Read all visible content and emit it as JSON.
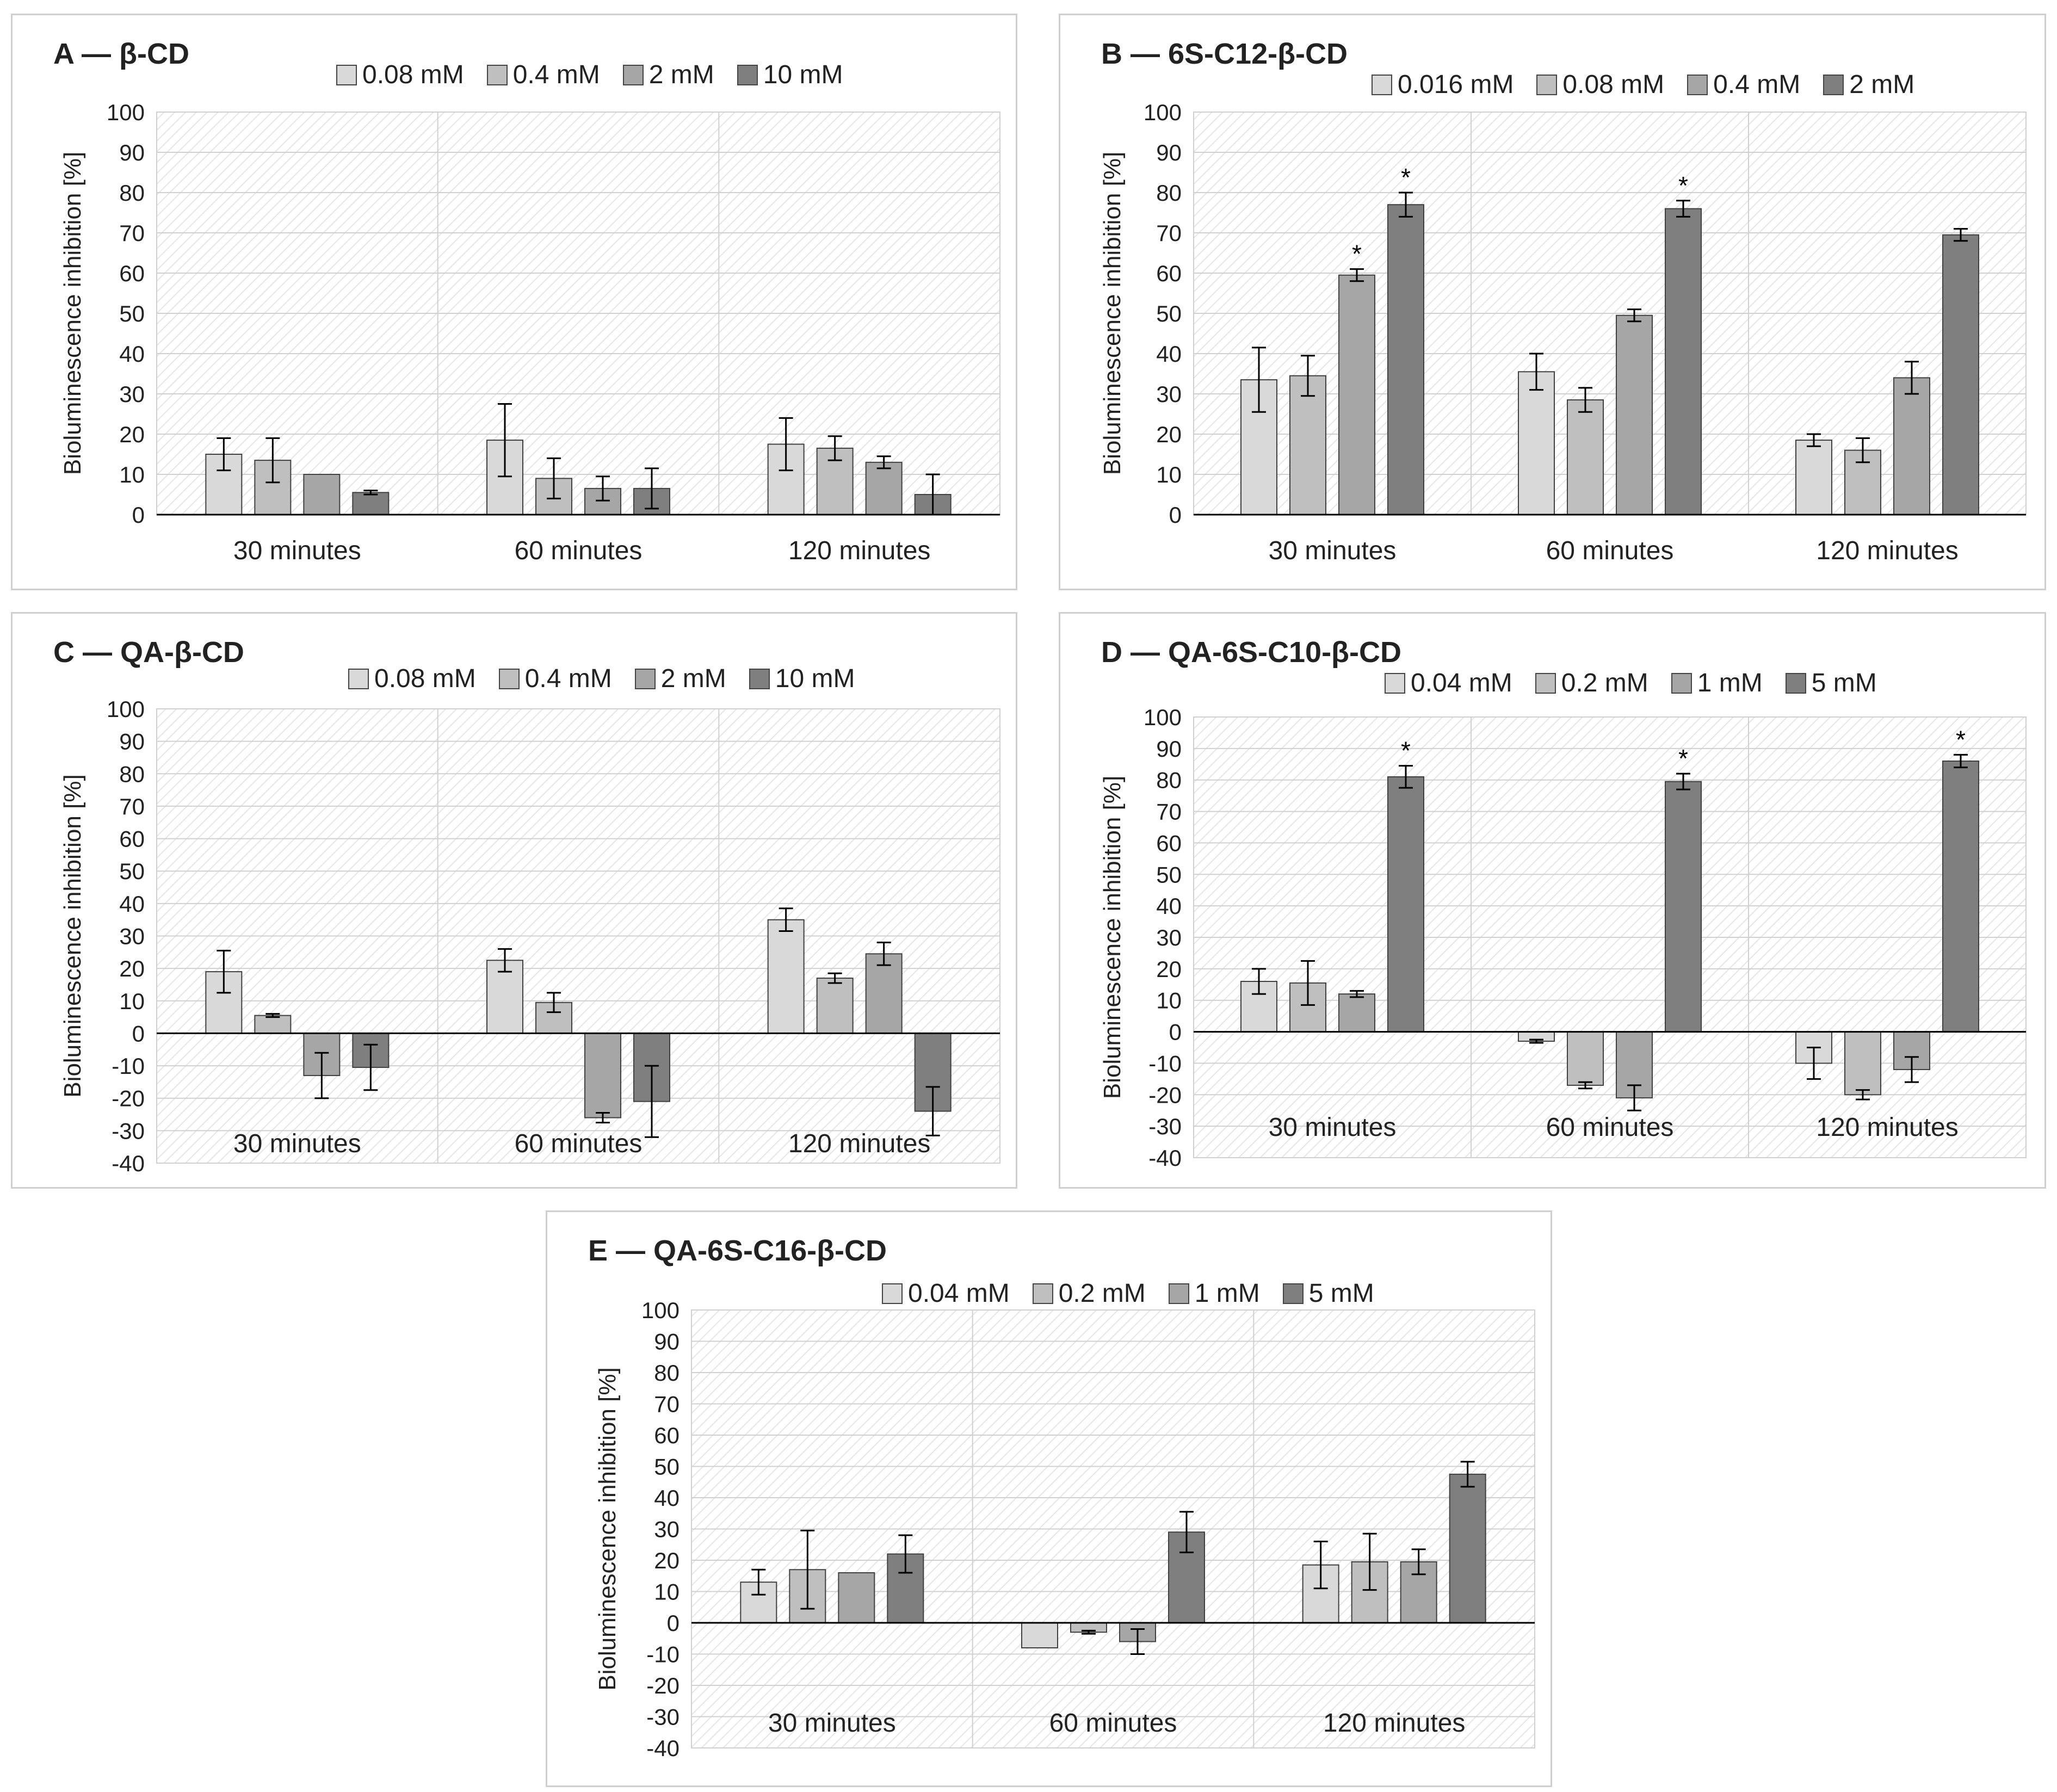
{
  "colors": {
    "series": [
      "#d9d9d9",
      "#bfbfbf",
      "#a6a6a6",
      "#7f7f7f"
    ],
    "bar_stroke": "#404040",
    "grid": "#d0d0d0",
    "hatch": "#e6e6e6",
    "axis": "#000000"
  },
  "chart_data": [
    {
      "panel_id": "a",
      "type": "bar",
      "title": "A — β-CD",
      "ylabel": "Bioluminescence inhibition [%]",
      "ylim": [
        0,
        100
      ],
      "yticks": [
        "100",
        "90",
        "80",
        "70",
        "60",
        "50",
        "40",
        "30",
        "20",
        "10",
        "0"
      ],
      "categories": [
        "30 minutes",
        "60 minutes",
        "120 minutes"
      ],
      "series": [
        {
          "name": "0.08 mM",
          "values": [
            15,
            18.5,
            17.5
          ],
          "errors": [
            4,
            9,
            6.5
          ]
        },
        {
          "name": "0.4 mM",
          "values": [
            13.5,
            9,
            16.5
          ],
          "errors": [
            5.5,
            5,
            3
          ]
        },
        {
          "name": "2 mM",
          "values": [
            10,
            6.5,
            13
          ],
          "errors": [
            0,
            3,
            1.5
          ]
        },
        {
          "name": "10 mM",
          "values": [
            5.5,
            6.5,
            5
          ],
          "errors": [
            0.5,
            5,
            5
          ]
        }
      ],
      "significance": [],
      "legend": "top"
    },
    {
      "panel_id": "b",
      "type": "bar",
      "title": "B — 6S-C12-β-CD",
      "ylabel": "Bioluminescence inhibition [%]",
      "ylim": [
        0,
        100
      ],
      "yticks": [
        "100",
        "90",
        "80",
        "70",
        "60",
        "50",
        "40",
        "30",
        "20",
        "10",
        "0"
      ],
      "categories": [
        "30 minutes",
        "60 minutes",
        "120 minutes"
      ],
      "series": [
        {
          "name": "0.016 mM",
          "values": [
            33.5,
            35.5,
            18.5
          ],
          "errors": [
            8,
            4.5,
            1.5
          ]
        },
        {
          "name": "0.08 mM",
          "values": [
            34.5,
            28.5,
            16
          ],
          "errors": [
            5,
            3,
            3
          ]
        },
        {
          "name": "0.4 mM",
          "values": [
            59.5,
            49.5,
            34
          ],
          "errors": [
            1.5,
            1.5,
            4
          ]
        },
        {
          "name": "2 mM",
          "values": [
            77,
            76,
            69.5
          ],
          "errors": [
            3,
            2,
            1.5
          ]
        }
      ],
      "significance": [
        {
          "category": 0,
          "series": 2,
          "label": "*"
        },
        {
          "category": 0,
          "series": 3,
          "label": "*"
        },
        {
          "category": 1,
          "series": 3,
          "label": "*"
        }
      ],
      "legend": "top"
    },
    {
      "panel_id": "c",
      "type": "bar",
      "title": "C — QA-β-CD",
      "ylabel": "Bioluminescence inhibition [%]",
      "ylim": [
        -40,
        100
      ],
      "yticks": [
        "100",
        "90",
        "80",
        "70",
        "60",
        "50",
        "40",
        "30",
        "20",
        "10",
        "0",
        "-10",
        "-20",
        "-30",
        "-40"
      ],
      "categories": [
        "30 minutes",
        "60 minutes",
        "120 minutes"
      ],
      "series": [
        {
          "name": "0.08 mM",
          "values": [
            19,
            22.5,
            35
          ],
          "errors": [
            6.5,
            3.5,
            3.5
          ]
        },
        {
          "name": "0.4 mM",
          "values": [
            5.5,
            9.5,
            17
          ],
          "errors": [
            0.5,
            3,
            1.5
          ]
        },
        {
          "name": "2 mM",
          "values": [
            -13,
            -26,
            24.5
          ],
          "errors": [
            7,
            1.5,
            3.5
          ]
        },
        {
          "name": "10 mM",
          "values": [
            -10.5,
            -21,
            -24
          ],
          "errors": [
            7,
            11,
            7.5
          ]
        }
      ],
      "significance": [],
      "legend": "top"
    },
    {
      "panel_id": "d",
      "type": "bar",
      "title": "D — QA-6S-C10-β-CD",
      "ylabel": "Bioluminescence inhibition [%]",
      "ylim": [
        -40,
        100
      ],
      "yticks": [
        "100",
        "90",
        "80",
        "70",
        "60",
        "50",
        "40",
        "30",
        "20",
        "10",
        "0",
        "-10",
        "-20",
        "-30",
        "-40"
      ],
      "categories": [
        "30 minutes",
        "60 minutes",
        "120 minutes"
      ],
      "series": [
        {
          "name": "0.04 mM",
          "values": [
            16,
            -3,
            -10
          ],
          "errors": [
            4,
            0.5,
            5
          ]
        },
        {
          "name": "0.2 mM",
          "values": [
            15.5,
            -17,
            -20
          ],
          "errors": [
            7,
            1,
            1.5
          ]
        },
        {
          "name": "1 mM",
          "values": [
            12,
            -21,
            -12
          ],
          "errors": [
            1,
            4,
            4
          ]
        },
        {
          "name": "5 mM",
          "values": [
            81,
            79.5,
            86
          ],
          "errors": [
            3.5,
            2.5,
            2
          ]
        }
      ],
      "significance": [
        {
          "category": 0,
          "series": 3,
          "label": "*"
        },
        {
          "category": 1,
          "series": 3,
          "label": "*"
        },
        {
          "category": 2,
          "series": 3,
          "label": "*"
        }
      ],
      "legend": "top"
    },
    {
      "panel_id": "e",
      "type": "bar",
      "title": "E — QA-6S-C16-β-CD",
      "ylabel": "Bioluminescence inhibition [%]",
      "ylim": [
        -40,
        100
      ],
      "yticks": [
        "100",
        "90",
        "80",
        "70",
        "60",
        "50",
        "40",
        "30",
        "20",
        "10",
        "0",
        "-10",
        "-20",
        "-30",
        "-40"
      ],
      "categories": [
        "30 minutes",
        "60 minutes",
        "120 minutes"
      ],
      "series": [
        {
          "name": "0.04 mM",
          "values": [
            13,
            -8,
            18.5
          ],
          "errors": [
            4,
            0,
            7.5
          ]
        },
        {
          "name": "0.2 mM",
          "values": [
            17,
            -3,
            19.5
          ],
          "errors": [
            12.5,
            0.5,
            9
          ]
        },
        {
          "name": "1 mM",
          "values": [
            16,
            -6,
            19.5
          ],
          "errors": [
            0,
            4,
            4
          ]
        },
        {
          "name": "5 mM",
          "values": [
            22,
            29,
            47.5
          ],
          "errors": [
            6,
            6.5,
            4
          ]
        }
      ],
      "significance": [],
      "legend": "top"
    }
  ]
}
